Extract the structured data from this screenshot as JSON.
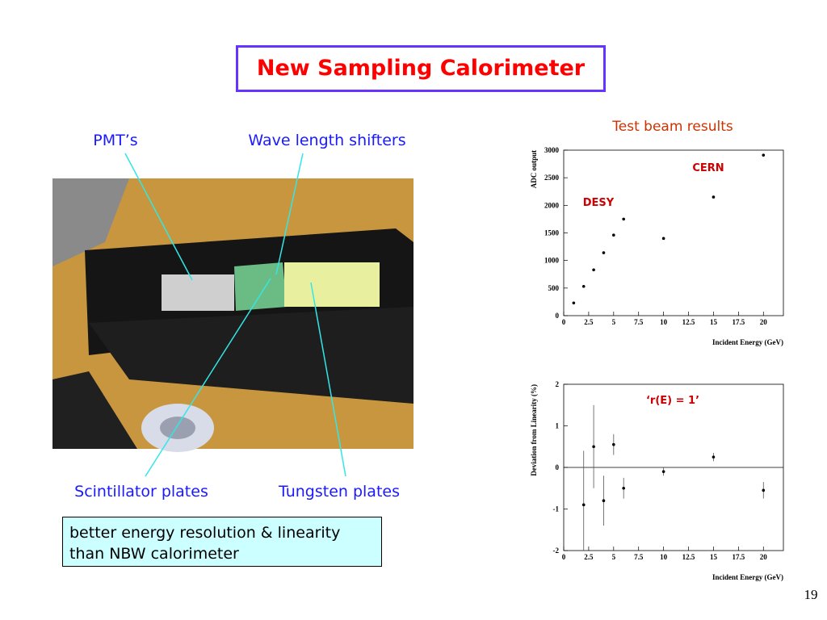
{
  "title": "New Sampling Calorimeter",
  "photo_labels": {
    "pmts": "PMT’s",
    "shifters": "Wave length shifters",
    "scintillator": "Scintillator plates",
    "tungsten": "Tungsten plates"
  },
  "note": "better energy resolution & linearity than NBW calorimeter",
  "page_number": "19",
  "chart_data": [
    {
      "type": "scatter",
      "title": "Test beam results",
      "x_label": "Incident Energy (GeV)",
      "y_label": "ADC output",
      "x": [
        1,
        2,
        3,
        4,
        5,
        6,
        10,
        15,
        20
      ],
      "values": [
        230,
        530,
        830,
        1140,
        1460,
        1750,
        1400,
        2150,
        2910
      ],
      "color": "#000000",
      "annotations": [
        "DESY",
        "CERN"
      ],
      "annotation_color": "#cc0000",
      "xlim": [
        0,
        22
      ],
      "ylim": [
        0,
        3000
      ],
      "xticks": [
        0,
        2.5,
        5,
        7.5,
        10,
        12.5,
        15,
        17.5,
        20
      ],
      "yticks": [
        0,
        500,
        1000,
        1500,
        2000,
        2500,
        3000
      ]
    },
    {
      "type": "errorbar",
      "x_label": "Incident Energy (GeV)",
      "y_label": "Deviation from Linearity (%)",
      "x": [
        2,
        3,
        4,
        5,
        6,
        10,
        15,
        20
      ],
      "values": [
        -0.9,
        0.5,
        -0.8,
        0.55,
        -0.5,
        -0.1,
        0.25,
        -0.55
      ],
      "errors": [
        1.3,
        1.0,
        0.6,
        0.25,
        0.25,
        0.1,
        0.1,
        0.2
      ],
      "color": "#000000",
      "annotations": [
        "‘r(E) = 1’"
      ],
      "annotation_color": "#cc0000",
      "xlim": [
        0,
        22
      ],
      "ylim": [
        -2,
        2
      ],
      "xticks": [
        0,
        2.5,
        5,
        7.5,
        10,
        12.5,
        15,
        17.5,
        20
      ],
      "yticks": [
        -2,
        -1,
        0,
        1,
        2
      ]
    }
  ]
}
